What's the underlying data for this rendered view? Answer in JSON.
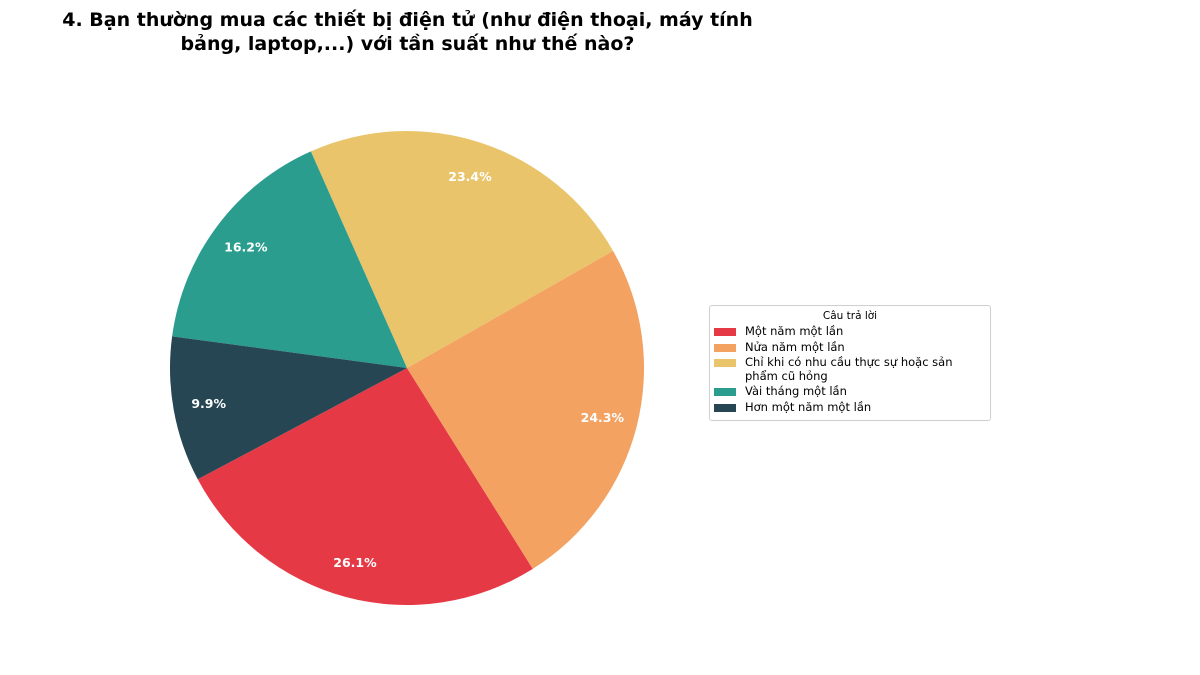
{
  "chart_data": {
    "type": "pie",
    "title": "4. Bạn thường mua các thiết bị điện tử (như điện thoại, máy tính bảng, laptop,...) với tần suất như thế nào?",
    "legend": {
      "title": "Câu trả lời",
      "placement": "right"
    },
    "slices": [
      {
        "label": "Một năm một lần",
        "value": 26.1,
        "value_label": "26.1%",
        "color": "#e63946"
      },
      {
        "label": "Nửa năm một lần",
        "value": 24.3,
        "value_label": "24.3%",
        "color": "#f4a261"
      },
      {
        "label": "Chỉ khi có nhu cầu thực sự hoặc sản phẩm cũ hỏng",
        "value": 23.4,
        "value_label": "23.4%",
        "color": "#e9c46a"
      },
      {
        "label": "Vài tháng một lần",
        "value": 16.2,
        "value_label": "16.2%",
        "color": "#2a9d8f"
      },
      {
        "label": "Hơn một năm một lần",
        "value": 9.9,
        "value_label": "9.9%",
        "color": "#264653"
      }
    ]
  }
}
